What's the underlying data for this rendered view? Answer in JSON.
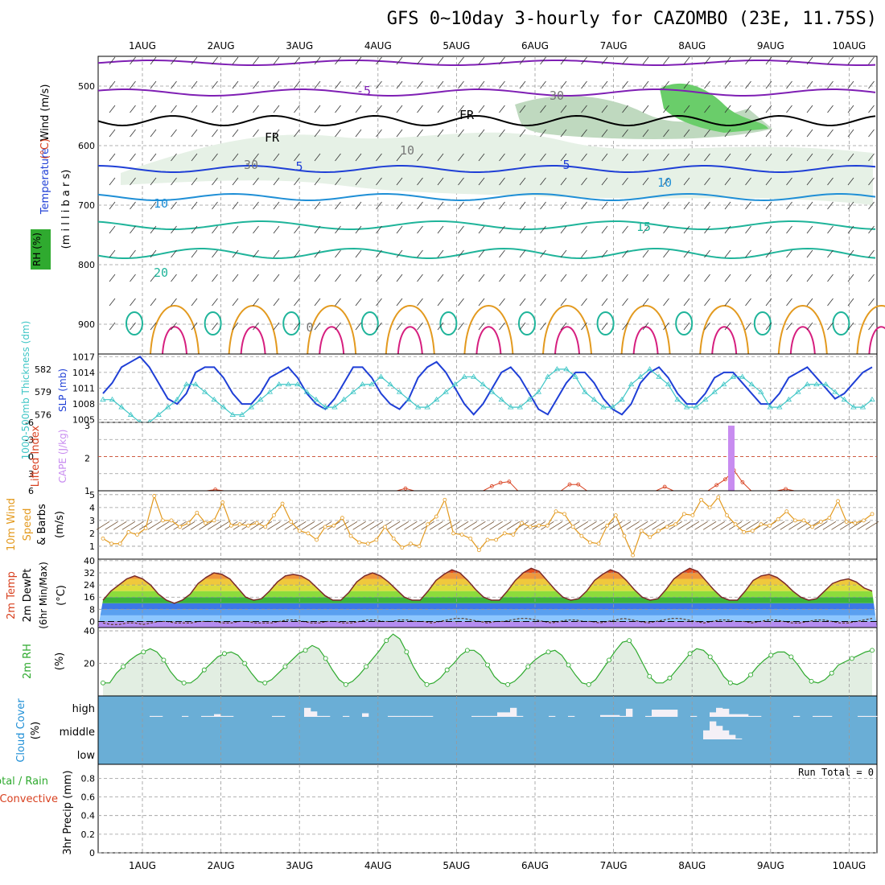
{
  "title": "GFS 0~10day 3-hourly for CAZOMBO (23E, 11.75S)",
  "colors": {
    "purple": "#7f1fb4",
    "blue": "#1f3fd6",
    "lightblue": "#1f8fd6",
    "teal": "#1fb49a",
    "orange": "#e39a1f",
    "red": "#d8401f",
    "magenta": "#d61f7f",
    "green": "#2faa2f",
    "cyan": "#3fc6c6",
    "cloud": "#6aaed6",
    "rhfill": "#d6e8d6",
    "lavender": "#c88cf0"
  },
  "chart_data": [
    {
      "panel": "upper-air",
      "type": "contour",
      "x": [
        "1AUG",
        "2AUG",
        "3AUG",
        "4AUG",
        "5AUG",
        "6AUG",
        "7AUG",
        "8AUG",
        "9AUG",
        "10AUG"
      ],
      "ylabel": "(millibars)",
      "ylabels": [
        "Wind (m/s)",
        "Temperature (°C)",
        "RH (%)"
      ],
      "yticks": [
        500,
        600,
        700,
        800,
        900
      ],
      "ylim": [
        450,
        950
      ],
      "contour_labels": [
        "-5",
        "FR",
        "FR",
        "5",
        "5",
        "10",
        "10",
        "15",
        "20",
        "30",
        "30",
        "10",
        "0"
      ]
    },
    {
      "panel": "slp-thickness",
      "type": "line",
      "ylabel_left": "1000-500mb Thickness (dm)",
      "ylabel_right": "SLP (mb)",
      "yticks_left": [
        576,
        579,
        582
      ],
      "yticks_right": [
        1005,
        1008,
        1011,
        1014,
        1017
      ],
      "series": [
        {
          "name": "SLP (mb)",
          "values": [
            1010,
            1012,
            1015,
            1016,
            1017,
            1015,
            1012,
            1009,
            1008,
            1010,
            1014,
            1015,
            1015,
            1013,
            1010,
            1008,
            1008,
            1010,
            1013,
            1014,
            1015,
            1013,
            1010,
            1008,
            1007,
            1009,
            1012,
            1015,
            1015,
            1013,
            1010,
            1008,
            1007,
            1009,
            1013,
            1015,
            1016,
            1014,
            1011,
            1008,
            1006,
            1008,
            1011,
            1014,
            1015,
            1013,
            1010,
            1007,
            1006,
            1009,
            1012,
            1014,
            1014,
            1012,
            1009,
            1007,
            1006,
            1008,
            1012,
            1014,
            1015,
            1013,
            1010,
            1008,
            1008,
            1010,
            1013,
            1014,
            1014,
            1012,
            1010,
            1008,
            1008,
            1010,
            1013,
            1014,
            1015,
            1013,
            1011,
            1009,
            1010,
            1012,
            1014,
            1015
          ]
        },
        {
          "name": "1000-500mb Thickness (dm)",
          "values": [
            578,
            578,
            577,
            576,
            575,
            575,
            576,
            577,
            578,
            580,
            580,
            579,
            578,
            577,
            576,
            576,
            577,
            578,
            579,
            580,
            580,
            580,
            579,
            578,
            577,
            577,
            578,
            579,
            580,
            580,
            581,
            580,
            579,
            578,
            577,
            577,
            578,
            579,
            580,
            581,
            581,
            580,
            579,
            578,
            577,
            577,
            578,
            579,
            581,
            582,
            582,
            581,
            579,
            578,
            577,
            577,
            578,
            580,
            581,
            582,
            581,
            580,
            578,
            577,
            577,
            578,
            579,
            580,
            581,
            581,
            580,
            579,
            577,
            577,
            578,
            579,
            580,
            580,
            580,
            579,
            578,
            577,
            577,
            578
          ]
        }
      ]
    },
    {
      "panel": "instability",
      "type": "line+bar",
      "ylabel_left": "Lifted Index",
      "ylabel_right": "CAPE (J/kg)",
      "yticks_left": [
        "-6",
        "-3",
        "0",
        "3",
        "6"
      ],
      "yticks_right": [
        1,
        2,
        3
      ],
      "lifted_index": [
        6,
        6,
        6,
        6,
        6,
        6,
        6,
        6,
        6,
        6,
        6,
        6,
        6,
        5.8,
        6,
        6,
        6,
        6,
        6,
        6,
        6,
        6,
        6,
        6,
        6,
        6,
        6,
        6,
        6,
        6,
        6,
        6,
        6,
        6,
        6,
        5.6,
        6,
        6,
        6,
        6,
        6,
        6,
        6,
        6,
        6,
        5.2,
        4.6,
        4.4,
        6,
        6,
        6,
        6,
        6,
        6,
        4.9,
        4.9,
        6,
        6,
        6,
        6,
        6,
        6,
        6,
        6,
        6,
        5.3,
        6,
        6,
        6,
        6,
        6,
        5.0,
        4.0,
        2.4,
        4.5,
        6,
        6,
        6,
        6,
        5.7,
        6,
        6,
        6,
        6,
        6,
        6,
        6,
        6,
        6,
        6
      ],
      "cape_bar": {
        "day_index": 7.5,
        "value": 3
      }
    },
    {
      "panel": "wind10m",
      "type": "line",
      "ylabel": "10m Wind Speed & Barbs (m/s)",
      "yticks": [
        1,
        2,
        3,
        4,
        5
      ],
      "series": [
        {
          "name": "Speed (m/s)",
          "values": [
            1.6,
            1.2,
            1.2,
            2.1,
            1.9,
            2.4,
            4.9,
            3.0,
            3.0,
            2.5,
            2.8,
            3.6,
            2.8,
            3.0,
            4.4,
            2.6,
            2.7,
            2.6,
            2.8,
            2.5,
            3.4,
            4.3,
            2.9,
            2.2,
            2.0,
            1.5,
            2.5,
            2.6,
            3.2,
            1.8,
            1.3,
            1.2,
            1.5,
            2.5,
            1.6,
            0.9,
            1.2,
            1.0,
            2.7,
            3.3,
            4.6,
            2.0,
            1.9,
            1.6,
            0.7,
            1.5,
            1.5,
            2.0,
            1.9,
            2.8,
            2.5,
            2.6,
            2.6,
            3.7,
            3.5,
            2.5,
            1.8,
            1.3,
            1.2,
            2.6,
            3.4,
            1.8,
            0.3,
            2.2,
            1.7,
            2.2,
            2.5,
            2.7,
            3.5,
            3.4,
            4.6,
            4.0,
            4.8,
            3.4,
            2.7,
            2.1,
            2.2,
            2.7,
            2.6,
            3.1,
            3.7,
            3.0,
            3.0,
            2.5,
            2.9,
            3.2,
            4.5,
            2.9,
            2.8,
            3.0,
            3.5
          ]
        }
      ]
    },
    {
      "panel": "temperature",
      "type": "area",
      "ylabel": "2m Temp 2m DewPt (6hr Min/Max) (°C)",
      "yticks": [
        0,
        8,
        16,
        24,
        32,
        40
      ],
      "series": [
        {
          "name": "2m Temp",
          "values": [
            14,
            20,
            24,
            28,
            30,
            28,
            24,
            18,
            14,
            12,
            14,
            18,
            25,
            29,
            32,
            31,
            28,
            22,
            16,
            14,
            15,
            20,
            26,
            30,
            31,
            30,
            27,
            22,
            17,
            14,
            14,
            19,
            26,
            30,
            32,
            30,
            26,
            21,
            16,
            14,
            14,
            20,
            27,
            31,
            34,
            32,
            27,
            21,
            16,
            14,
            14,
            20,
            27,
            32,
            35,
            33,
            27,
            21,
            16,
            14,
            15,
            20,
            27,
            31,
            34,
            32,
            27,
            21,
            16,
            14,
            15,
            21,
            28,
            32,
            35,
            33,
            27,
            21,
            16,
            14,
            14,
            20,
            27,
            30,
            31,
            29,
            25,
            20,
            16,
            14,
            15,
            20,
            25,
            27,
            28,
            26,
            22,
            20
          ]
        },
        {
          "name": "2m DewPt",
          "values": [
            -1,
            -2,
            -2,
            -1,
            -1,
            -2,
            -1,
            0,
            0,
            -1,
            -1,
            -1,
            0,
            0,
            0,
            -1,
            -1,
            0,
            0,
            -1,
            -1,
            -1,
            0,
            1,
            1,
            0,
            -1,
            -1,
            0,
            0,
            -1,
            -1,
            0,
            1,
            1,
            0,
            0,
            1,
            1,
            0,
            0,
            -1,
            0,
            1,
            2,
            2,
            1,
            0,
            -1,
            0,
            0,
            1,
            2,
            2,
            1,
            0,
            -1,
            0,
            1,
            1,
            0,
            0,
            -1,
            0,
            1,
            2,
            1,
            0,
            -1,
            0,
            1,
            2,
            2,
            1,
            0,
            -1,
            0,
            1,
            1,
            0,
            0,
            -1,
            0,
            1,
            1,
            0,
            -1,
            -1,
            0,
            1,
            1,
            0,
            -1,
            -1,
            0,
            1,
            2
          ]
        }
      ]
    },
    {
      "panel": "rh",
      "type": "area",
      "ylabel": "2m RH (%)",
      "yticks": [
        20,
        40
      ],
      "series": [
        {
          "name": "2m RH",
          "values": [
            8,
            8,
            14,
            18,
            22,
            25,
            27,
            29,
            27,
            22,
            15,
            10,
            8,
            8,
            11,
            16,
            20,
            24,
            26,
            27,
            25,
            20,
            14,
            9,
            8,
            10,
            14,
            18,
            22,
            26,
            28,
            31,
            29,
            23,
            16,
            10,
            7,
            9,
            13,
            18,
            23,
            28,
            34,
            38,
            35,
            27,
            18,
            11,
            7,
            8,
            11,
            16,
            20,
            25,
            28,
            28,
            25,
            19,
            12,
            8,
            7,
            9,
            13,
            18,
            22,
            25,
            27,
            28,
            25,
            19,
            13,
            8,
            7,
            10,
            16,
            22,
            28,
            33,
            34,
            28,
            20,
            12,
            8,
            8,
            11,
            16,
            21,
            26,
            29,
            28,
            24,
            19,
            12,
            8,
            7,
            9,
            13,
            18,
            22,
            25,
            27,
            27,
            24,
            19,
            13,
            9,
            8,
            10,
            14,
            19,
            21,
            23,
            25,
            27,
            28
          ]
        }
      ]
    },
    {
      "panel": "cloud-cover",
      "type": "bar",
      "ylabel": "Cloud Cover (%)",
      "ylabels": [
        "high",
        "middle",
        "low"
      ],
      "high": [
        0,
        0,
        0,
        0,
        0,
        0,
        0,
        0,
        4,
        4,
        0,
        0,
        0,
        4,
        0,
        0,
        4,
        4,
        12,
        4,
        4,
        0,
        0,
        0,
        0,
        0,
        0,
        4,
        4,
        0,
        0,
        0,
        40,
        24,
        4,
        4,
        0,
        0,
        4,
        0,
        0,
        16,
        0,
        0,
        0,
        4,
        4,
        4,
        4,
        4,
        4,
        4,
        0,
        0,
        0,
        0,
        0,
        0,
        4,
        4,
        4,
        4,
        20,
        20,
        40,
        4,
        0,
        0,
        0,
        0,
        4,
        0,
        0,
        4,
        0,
        0,
        0,
        0,
        8,
        8,
        8,
        4,
        36,
        0,
        0,
        4,
        32,
        32,
        32,
        32,
        0,
        0,
        4,
        0,
        0,
        20,
        40,
        36,
        12,
        12,
        12,
        4,
        4,
        0,
        0,
        0,
        0,
        0,
        4,
        0,
        0,
        4,
        4,
        4,
        0,
        0,
        0,
        0,
        4,
        4,
        4
      ],
      "middle": [
        0,
        0,
        0,
        0,
        0,
        0,
        0,
        0,
        0,
        0,
        0,
        0,
        0,
        0,
        0,
        0,
        0,
        0,
        0,
        0,
        0,
        0,
        0,
        0,
        0,
        0,
        0,
        0,
        0,
        0,
        0,
        0,
        0,
        0,
        0,
        0,
        0,
        0,
        0,
        0,
        0,
        0,
        0,
        0,
        0,
        0,
        0,
        0,
        0,
        0,
        0,
        0,
        0,
        0,
        0,
        0,
        0,
        0,
        0,
        0,
        0,
        0,
        0,
        0,
        0,
        0,
        0,
        0,
        0,
        0,
        0,
        0,
        0,
        0,
        0,
        0,
        0,
        0,
        0,
        0,
        0,
        0,
        0,
        0,
        0,
        0,
        0,
        0,
        0,
        0,
        0,
        0,
        0,
        0,
        40,
        80,
        60,
        40,
        20,
        4,
        0,
        0,
        0,
        0,
        0,
        0,
        0,
        0,
        0,
        0,
        0,
        0,
        0,
        0,
        0,
        0,
        0,
        0,
        0,
        0,
        0
      ]
    },
    {
      "panel": "precip",
      "type": "bar",
      "ylabel_lines": [
        "Total / Rain",
        "Convective"
      ],
      "ylabel": "3hr Precip (mm)",
      "yticks": [
        0,
        0.2,
        0.4,
        0.6,
        0.8
      ],
      "annotation": "Run Total = 0",
      "series": [
        {
          "name": "Total / Rain",
          "values": []
        },
        {
          "name": "Convective",
          "values": []
        }
      ]
    }
  ],
  "labels": {
    "upper": {
      "line1": "Wind (m/s)",
      "temp": "Temperature",
      "tempunit": "(°C)",
      "rh": "RH (%)",
      "mb": "(m i l l i b a r s)"
    },
    "slp": {
      "thick": "1000-500mb Thickness (dm)",
      "slp": "SLP (mb)"
    },
    "li": {
      "li": "Lifted Index",
      "cape": "CAPE (J/kg)"
    },
    "wind10": {
      "a": "10m Wind",
      "b": "Speed",
      "c": "& Barbs",
      "d": "(m/s)"
    },
    "temp": {
      "a": "2m Temp",
      "b": "2m DewPt",
      "c": "(6hr Min/Max)",
      "d": "(°C)"
    },
    "rh": {
      "a": "2m RH",
      "b": "(%)"
    },
    "cloud": {
      "a": "Cloud Cover",
      "b": "(%)"
    },
    "precip": {
      "a": "Total / Rain",
      "b": "Convective",
      "c": "3hr Precip (mm)"
    }
  }
}
